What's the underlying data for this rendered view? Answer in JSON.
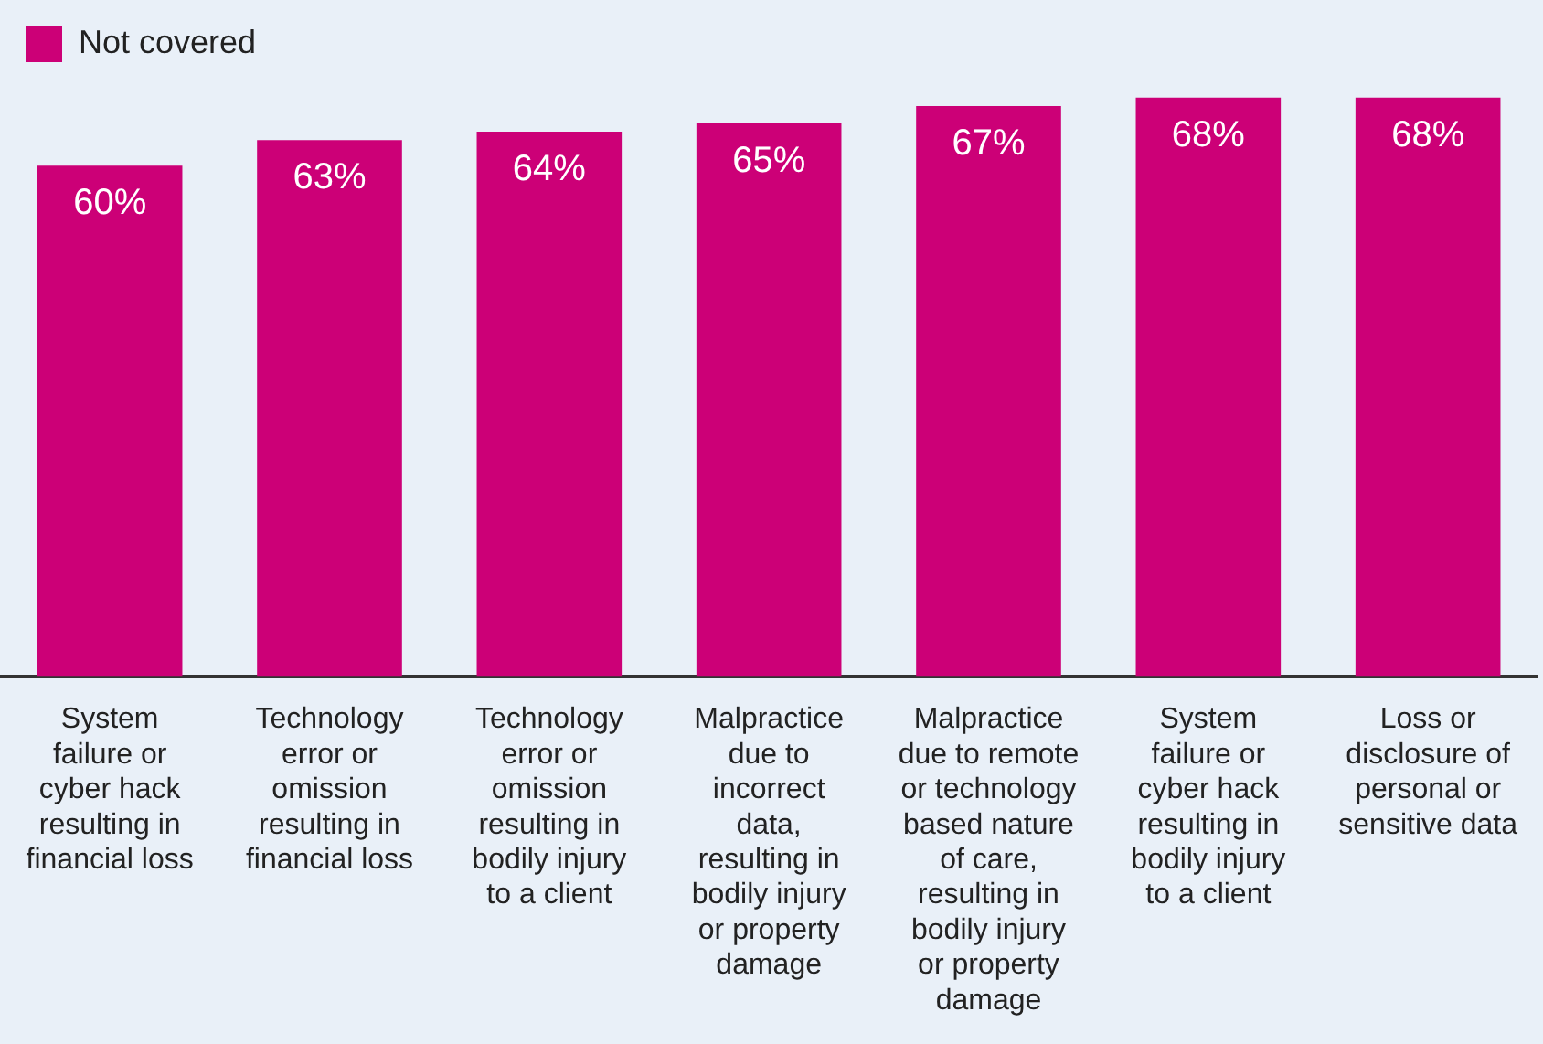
{
  "chart_data": {
    "type": "bar",
    "categories": [
      "System failure or cyber hack resulting in financial loss",
      "Technology error or omission resulting in financial loss",
      "Technology error or omission resulting in bodily injury to a client",
      "Malpractice due to incorrect data, resulting in bodily injury or property damage",
      "Malpractice due to remote or technology based nature of care, resulting in bodily injury or property damage",
      "System failure or cyber hack resulting in bodily injury to a client",
      "Loss or disclosure of personal or sensitive data"
    ],
    "series": [
      {
        "name": "Not covered",
        "color": "#cc0077",
        "values": [
          60,
          63,
          64,
          65,
          67,
          68,
          68
        ],
        "value_labels": [
          "60%",
          "63%",
          "64%",
          "65%",
          "67%",
          "68%",
          "68%"
        ]
      }
    ],
    "legend": "top left",
    "grid": false
  }
}
